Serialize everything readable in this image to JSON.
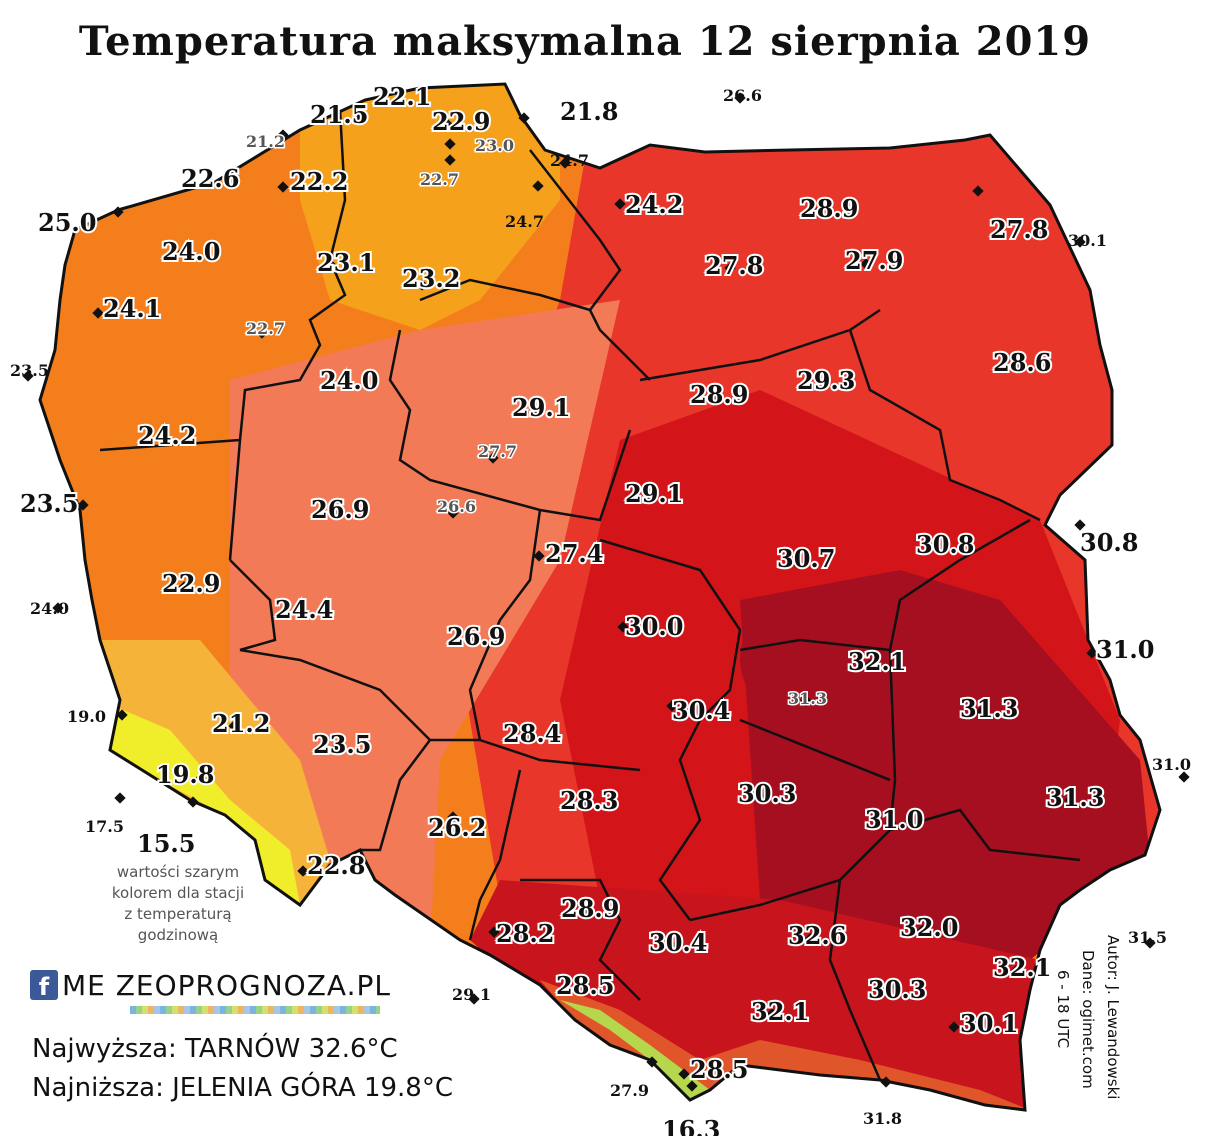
{
  "title": "Temperatura maksymalna 12 sierpnia 2019",
  "note": [
    "wartości szarym",
    "kolorem dla stacji",
    "z temperaturą",
    "godzinową"
  ],
  "logo": "ME ZEOPROGNOZA.PL",
  "logo_letter": "f",
  "highest": "Najwyższa: TARNÓW 32.6°C",
  "lowest": "Najniższa: JELENIA GÓRA 19.8°C",
  "author": "Autor: J. Lewandowski",
  "source": "Dane: ogimet.com",
  "hours": "6 - 18 UTC",
  "colors": {
    "yellow": "#f0ee2a",
    "orange": "#f6a11c",
    "dark_orange": "#f47e1c",
    "salmon": "#f27a56",
    "red": "#e8362a",
    "dark_red": "#d3151a",
    "maroon": "#a50f20",
    "purple": "#8b1540",
    "green_mountain": "#b6d64c",
    "border": "#111111"
  },
  "stations": [
    {
      "v": "22.1",
      "k": "big"
    },
    {
      "v": "21.5",
      "k": "big"
    },
    {
      "v": "22.9",
      "k": "big"
    },
    {
      "v": "21.8",
      "k": "big"
    },
    {
      "v": "26.6",
      "k": "small"
    },
    {
      "v": "21.2",
      "k": "grey"
    },
    {
      "v": "23.0",
      "k": "grey"
    },
    {
      "v": "24.7",
      "k": "small"
    },
    {
      "v": "22.6",
      "k": "big"
    },
    {
      "v": "22.2",
      "k": "big"
    },
    {
      "v": "22.7",
      "k": "grey"
    },
    {
      "v": "24.2",
      "k": "big"
    },
    {
      "v": "28.9",
      "k": "big"
    },
    {
      "v": "25.0",
      "k": "big"
    },
    {
      "v": "24.7",
      "k": "small"
    },
    {
      "v": "27.8",
      "k": "big"
    },
    {
      "v": "30.1",
      "k": "small"
    },
    {
      "v": "24.0",
      "k": "big"
    },
    {
      "v": "23.1",
      "k": "big"
    },
    {
      "v": "27.8",
      "k": "big"
    },
    {
      "v": "27.9",
      "k": "big"
    },
    {
      "v": "23.2",
      "k": "big"
    },
    {
      "v": "24.1",
      "k": "big"
    },
    {
      "v": "22.7",
      "k": "grey"
    },
    {
      "v": "28.6",
      "k": "big"
    },
    {
      "v": "23.5",
      "k": "small"
    },
    {
      "v": "24.0",
      "k": "big"
    },
    {
      "v": "28.9",
      "k": "big"
    },
    {
      "v": "29.3",
      "k": "big"
    },
    {
      "v": "29.1",
      "k": "big"
    },
    {
      "v": "24.2",
      "k": "big"
    },
    {
      "v": "27.7",
      "k": "grey"
    },
    {
      "v": "23.5",
      "k": "big"
    },
    {
      "v": "29.1",
      "k": "big"
    },
    {
      "v": "26.9",
      "k": "big"
    },
    {
      "v": "26.6",
      "k": "grey"
    },
    {
      "v": "30.8",
      "k": "big"
    },
    {
      "v": "30.8",
      "k": "big"
    },
    {
      "v": "27.4",
      "k": "big"
    },
    {
      "v": "30.7",
      "k": "big"
    },
    {
      "v": "22.9",
      "k": "big"
    },
    {
      "v": "24.0",
      "k": "small"
    },
    {
      "v": "24.4",
      "k": "big"
    },
    {
      "v": "26.9",
      "k": "big"
    },
    {
      "v": "30.0",
      "k": "big"
    },
    {
      "v": "31.0",
      "k": "big"
    },
    {
      "v": "32.1",
      "k": "big"
    },
    {
      "v": "31.3",
      "k": "grey"
    },
    {
      "v": "30.4",
      "k": "big"
    },
    {
      "v": "31.3",
      "k": "big"
    },
    {
      "v": "19.0",
      "k": "small"
    },
    {
      "v": "21.2",
      "k": "big"
    },
    {
      "v": "28.4",
      "k": "big"
    },
    {
      "v": "23.5",
      "k": "big"
    },
    {
      "v": "31.0",
      "k": "small"
    },
    {
      "v": "19.8",
      "k": "big"
    },
    {
      "v": "28.3",
      "k": "big"
    },
    {
      "v": "30.3",
      "k": "big"
    },
    {
      "v": "31.3",
      "k": "big"
    },
    {
      "v": "17.5",
      "k": "small"
    },
    {
      "v": "15.5",
      "k": "big"
    },
    {
      "v": "26.2",
      "k": "big"
    },
    {
      "v": "31.0",
      "k": "big"
    },
    {
      "v": "22.8",
      "k": "big"
    },
    {
      "v": "28.9",
      "k": "big"
    },
    {
      "v": "28.2",
      "k": "big"
    },
    {
      "v": "30.4",
      "k": "big"
    },
    {
      "v": "32.6",
      "k": "big"
    },
    {
      "v": "32.0",
      "k": "big"
    },
    {
      "v": "31.5",
      "k": "small"
    },
    {
      "v": "32.1",
      "k": "big"
    },
    {
      "v": "29.1",
      "k": "small"
    },
    {
      "v": "28.5",
      "k": "big"
    },
    {
      "v": "30.3",
      "k": "big"
    },
    {
      "v": "32.1",
      "k": "big"
    },
    {
      "v": "30.1",
      "k": "big"
    },
    {
      "v": "28.5",
      "k": "big"
    },
    {
      "v": "27.9",
      "k": "small"
    },
    {
      "v": "31.8",
      "k": "small"
    },
    {
      "v": "16.3",
      "k": "big"
    }
  ]
}
